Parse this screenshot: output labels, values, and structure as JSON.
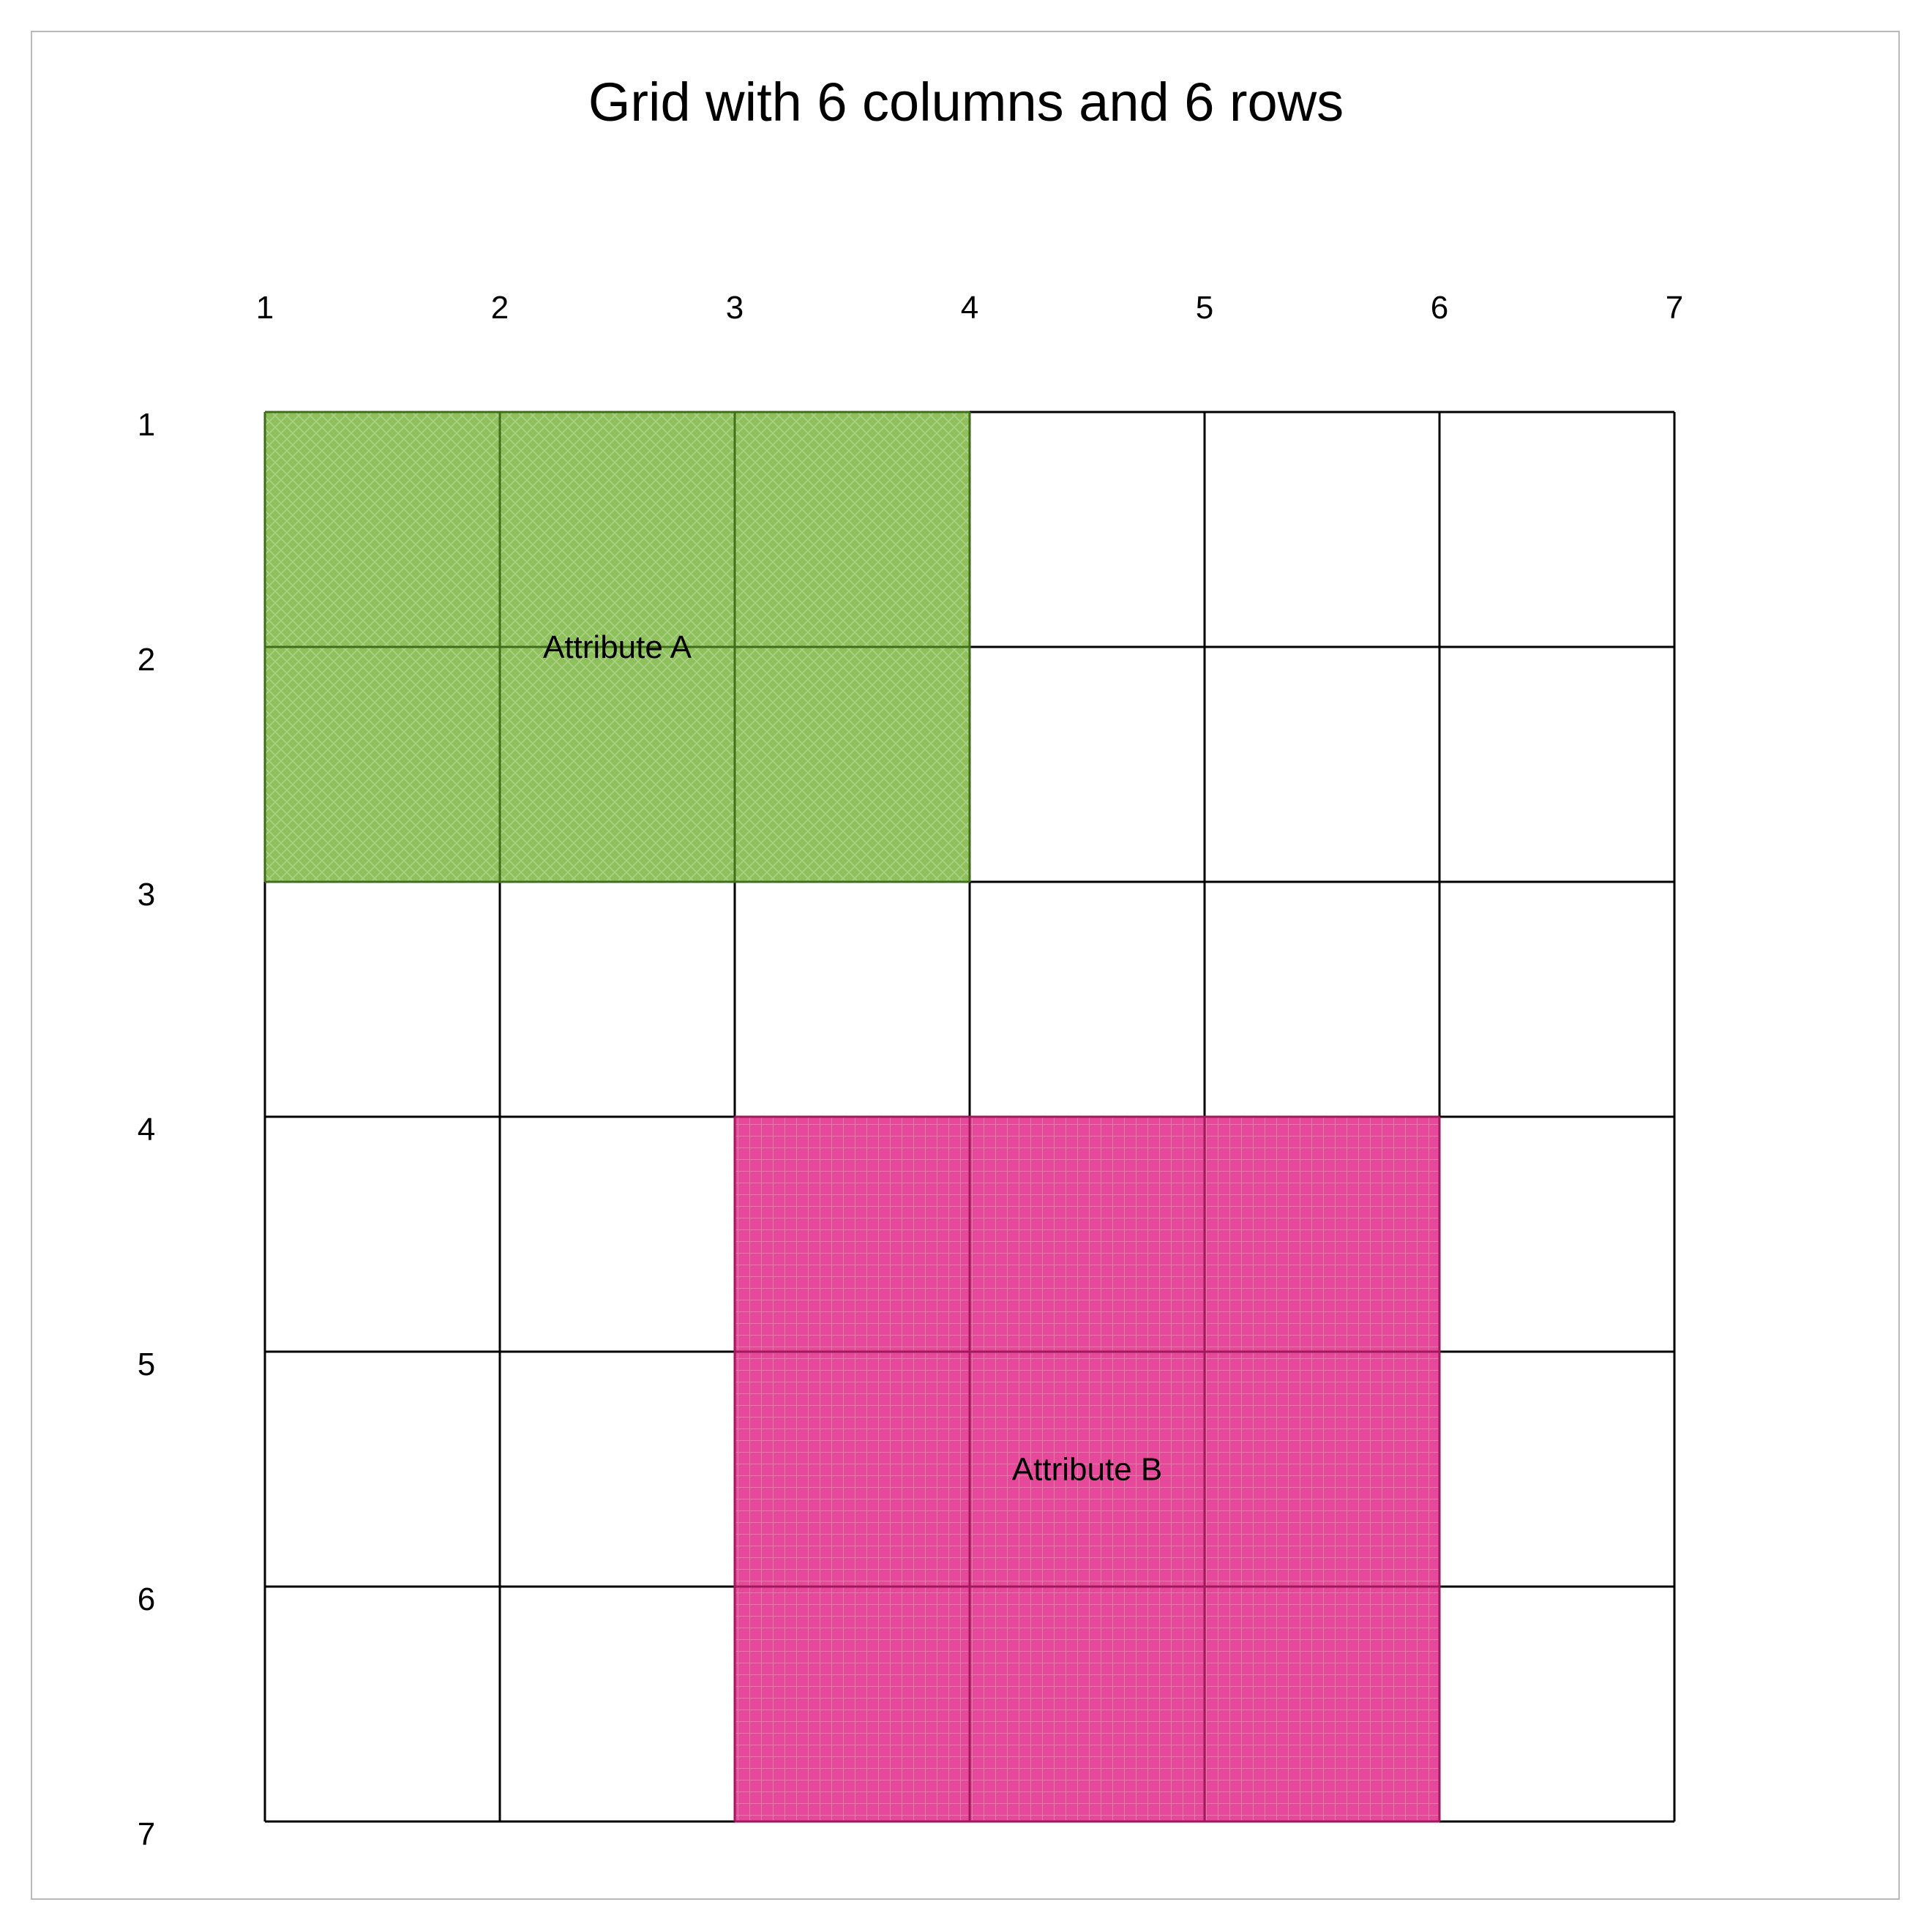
{
  "title": "Grid with 6 columns and 6 rows",
  "grid": {
    "columns": 6,
    "rows": 6,
    "column_line_labels": [
      "1",
      "2",
      "3",
      "4",
      "5",
      "6",
      "7"
    ],
    "row_line_labels": [
      "1",
      "2",
      "3",
      "4",
      "5",
      "6",
      "7"
    ]
  },
  "areas": [
    {
      "label": "Attribute A",
      "col_start": 1,
      "col_end": 4,
      "row_start": 1,
      "row_end": 3,
      "fill": "#8ec15c",
      "stroke": "#3f6e1a",
      "pattern": "diagonal-crosshatch"
    },
    {
      "label": "Attribute B",
      "col_start": 3,
      "col_end": 6,
      "row_start": 4,
      "row_end": 7,
      "fill": "#e6489a",
      "stroke": "#a3175f",
      "pattern": "grid"
    }
  ]
}
